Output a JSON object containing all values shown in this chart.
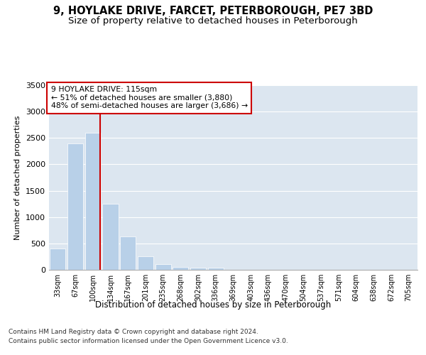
{
  "title": "9, HOYLAKE DRIVE, FARCET, PETERBOROUGH, PE7 3BD",
  "subtitle": "Size of property relative to detached houses in Peterborough",
  "xlabel": "Distribution of detached houses by size in Peterborough",
  "ylabel": "Number of detached properties",
  "categories": [
    "33sqm",
    "67sqm",
    "100sqm",
    "134sqm",
    "167sqm",
    "201sqm",
    "235sqm",
    "268sqm",
    "302sqm",
    "336sqm",
    "369sqm",
    "403sqm",
    "436sqm",
    "470sqm",
    "504sqm",
    "537sqm",
    "571sqm",
    "604sqm",
    "638sqm",
    "672sqm",
    "705sqm"
  ],
  "bar_values": [
    400,
    2400,
    2600,
    1250,
    630,
    250,
    110,
    55,
    45,
    35,
    0,
    0,
    0,
    0,
    0,
    0,
    0,
    0,
    0,
    0,
    0
  ],
  "bar_color": "#b8d0e8",
  "vline_color": "#cc0000",
  "vline_pos": 2.43,
  "annotation_line1": "9 HOYLAKE DRIVE: 115sqm",
  "annotation_line2": "← 51% of detached houses are smaller (3,880)",
  "annotation_line3": "48% of semi-detached houses are larger (3,686) →",
  "annotation_box_facecolor": "#ffffff",
  "annotation_box_edgecolor": "#cc0000",
  "ylim": [
    0,
    3500
  ],
  "yticks": [
    0,
    500,
    1000,
    1500,
    2000,
    2500,
    3000,
    3500
  ],
  "plot_bg_color": "#dce6f0",
  "grid_color": "#ffffff",
  "footer_line1": "Contains HM Land Registry data © Crown copyright and database right 2024.",
  "footer_line2": "Contains public sector information licensed under the Open Government Licence v3.0.",
  "title_fontsize": 10.5,
  "subtitle_fontsize": 9.5,
  "ylabel_fontsize": 8,
  "xlabel_fontsize": 8.5,
  "tick_fontsize": 7,
  "annotation_fontsize": 7.8,
  "footer_fontsize": 6.5
}
